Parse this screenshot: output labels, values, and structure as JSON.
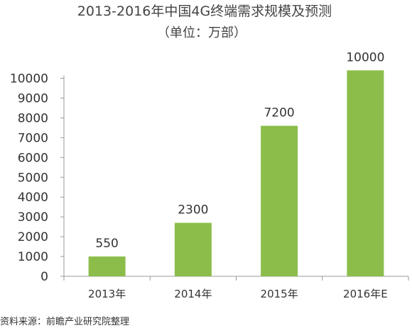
{
  "chart_data": {
    "type": "bar",
    "title": "2013-2016年中国4G终端需求规模及预测",
    "subtitle": "（单位：万部）",
    "categories": [
      "2013年",
      "2014年",
      "2015年",
      "2016年E"
    ],
    "values": [
      1000,
      2700,
      7600,
      10400
    ],
    "data_labels": [
      "550",
      "2300",
      "7200",
      "10000"
    ],
    "ylim": [
      0,
      10000
    ],
    "yticks": [
      0,
      1000,
      2000,
      3000,
      4000,
      5000,
      6000,
      7000,
      8000,
      9000,
      10000
    ],
    "ytick_labels": [
      "0",
      "1000",
      "2000",
      "3000",
      "4000",
      "5000",
      "6000",
      "7000",
      "8000",
      "9000",
      "10000"
    ],
    "grid": false,
    "legend": "none",
    "bar_color": "#8cbd4a",
    "axis_color": "#999999",
    "source": "资料来源：前瞻产业研究院整理"
  }
}
